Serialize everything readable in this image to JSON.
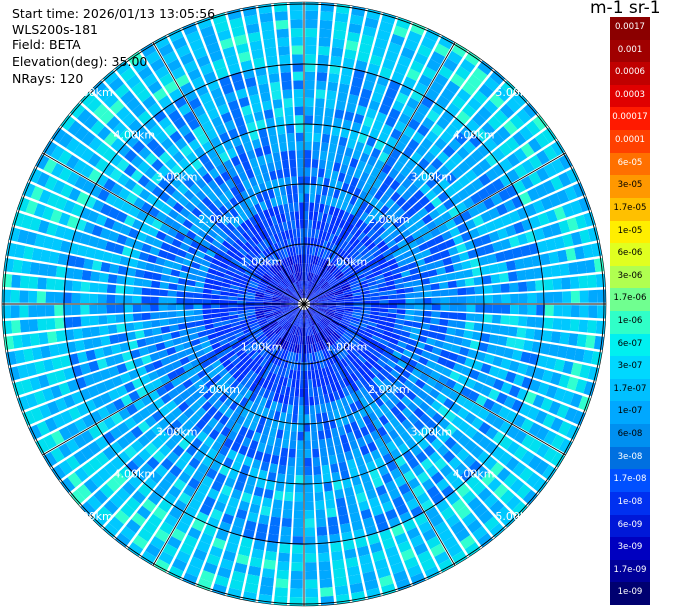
{
  "header": {
    "start_time": "Start time: 2026/01/13 13:05:56",
    "instrument": "WLS200s-181",
    "field": "Field: BETA",
    "elevation": "Elevation(deg): 35.00",
    "nrays": "NRays: 120"
  },
  "colorbar": {
    "title": "m-1 sr-1",
    "levels": [
      {
        "label": "0.0017",
        "color": "#8b0000",
        "text_color": "#ffffff"
      },
      {
        "label": "0.001",
        "color": "#a00000",
        "text_color": "#ffffff"
      },
      {
        "label": "0.0006",
        "color": "#c00000",
        "text_color": "#ffffff"
      },
      {
        "label": "0.0003",
        "color": "#e00000",
        "text_color": "#ffffff"
      },
      {
        "label": "0.00017",
        "color": "#ff1a00",
        "text_color": "#ffffff"
      },
      {
        "label": "0.0001",
        "color": "#ff4000",
        "text_color": "#ffffff"
      },
      {
        "label": "6e-05",
        "color": "#ff7000",
        "text_color": "#ffffff"
      },
      {
        "label": "3e-05",
        "color": "#ff9800",
        "text_color": "#000000"
      },
      {
        "label": "1.7e-05",
        "color": "#ffc000",
        "text_color": "#000000"
      },
      {
        "label": "1e-05",
        "color": "#ffee00",
        "text_color": "#000000"
      },
      {
        "label": "6e-06",
        "color": "#e0ff20",
        "text_color": "#000000"
      },
      {
        "label": "3e-06",
        "color": "#b0ff50",
        "text_color": "#000000"
      },
      {
        "label": "1.7e-06",
        "color": "#70ff90",
        "text_color": "#000000"
      },
      {
        "label": "1e-06",
        "color": "#30ffc8",
        "text_color": "#000000"
      },
      {
        "label": "6e-07",
        "color": "#00f0f0",
        "text_color": "#000000"
      },
      {
        "label": "3e-07",
        "color": "#00d8ff",
        "text_color": "#000000"
      },
      {
        "label": "1.7e-07",
        "color": "#00c0ff",
        "text_color": "#000000"
      },
      {
        "label": "1e-07",
        "color": "#00a8ff",
        "text_color": "#000000"
      },
      {
        "label": "6e-08",
        "color": "#0090f0",
        "text_color": "#000000"
      },
      {
        "label": "3e-08",
        "color": "#0070e0",
        "text_color": "#ffffff"
      },
      {
        "label": "1.7e-08",
        "color": "#0050ff",
        "text_color": "#ffffff"
      },
      {
        "label": "1e-08",
        "color": "#0030f0",
        "text_color": "#ffffff"
      },
      {
        "label": "6e-09",
        "color": "#0018d8",
        "text_color": "#ffffff"
      },
      {
        "label": "3e-09",
        "color": "#0000c0",
        "text_color": "#ffffff"
      },
      {
        "label": "1.7e-09",
        "color": "#00009a",
        "text_color": "#ffffff"
      },
      {
        "label": "1e-09",
        "color": "#000070",
        "text_color": "#ffffff"
      }
    ]
  },
  "range_rings": {
    "labels": [
      "1.00km",
      "2.00km",
      "3.00km",
      "4.00km",
      "5.00km"
    ]
  }
}
